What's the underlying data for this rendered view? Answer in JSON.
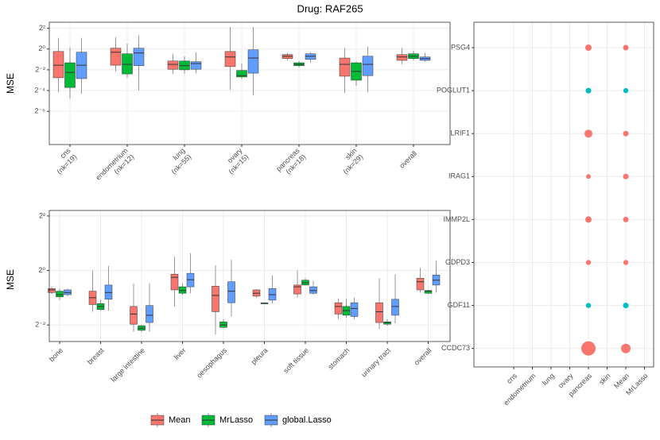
{
  "title": "Drug: RAF265",
  "chart_data": [
    {
      "type": "boxplot",
      "y_label": "MSE",
      "log_base": 2,
      "categories": [
        "cns",
        "endometrium",
        "lung",
        "ovary",
        "pancreas",
        "skin",
        "overall"
      ],
      "category_notes": [
        "(nk=19)",
        "(nk=12)",
        "(nk=55)",
        "(nk=15)",
        "(nk=18)",
        "(nk=29)",
        null
      ],
      "ylim": [
        0.0017,
        6
      ],
      "yticks": [
        {
          "value": 4,
          "label": "2²"
        },
        {
          "value": 1,
          "label": "2⁰"
        },
        {
          "value": 0.25,
          "label": "2⁻²"
        },
        {
          "value": 0.0625,
          "label": "2⁻⁴"
        },
        {
          "value": 0.015625,
          "label": "2⁻⁶"
        }
      ],
      "grid": true,
      "series": [
        {
          "name": "Mean",
          "color": "#F8766D",
          "values": [
            {
              "min": 0.056,
              "q1": 0.147,
              "median": 0.34,
              "q3": 0.85,
              "max": 2.11
            },
            {
              "min": 0.225,
              "q1": 0.34,
              "median": 0.81,
              "q3": 1.06,
              "max": 2.2
            },
            {
              "min": 0.19,
              "q1": 0.26,
              "median": 0.36,
              "q3": 0.45,
              "max": 0.73
            },
            {
              "min": 0.066,
              "q1": 0.31,
              "median": 0.59,
              "q3": 0.85,
              "max": 4.4
            },
            {
              "min": 0.47,
              "q1": 0.53,
              "median": 0.62,
              "q3": 0.69,
              "max": 0.77
            },
            {
              "min": 0.053,
              "q1": 0.163,
              "median": 0.36,
              "q3": 0.55,
              "max": 1.06
            },
            {
              "min": 0.36,
              "q1": 0.47,
              "median": 0.59,
              "q3": 0.69,
              "max": 1.06
            }
          ]
        },
        {
          "name": "MrLasso",
          "color": "#00BA38",
          "values": [
            {
              "min": 0.037,
              "q1": 0.077,
              "median": 0.21,
              "q3": 0.4,
              "max": 1.11
            },
            {
              "min": 0.147,
              "q1": 0.19,
              "median": 0.36,
              "q3": 0.73,
              "max": 1.45
            },
            {
              "min": 0.19,
              "q1": 0.25,
              "median": 0.33,
              "q3": 0.45,
              "max": 0.62
            },
            {
              "min": 0.139,
              "q1": 0.155,
              "median": 0.17,
              "q3": 0.24,
              "max": 0.38
            },
            {
              "min": 0.29,
              "q1": 0.33,
              "median": 0.36,
              "q3": 0.4,
              "max": 0.45
            },
            {
              "min": 0.086,
              "q1": 0.125,
              "median": 0.225,
              "q3": 0.4,
              "max": 0.43
            },
            {
              "min": 0.47,
              "q1": 0.53,
              "median": 0.62,
              "q3": 0.73,
              "max": 0.9
            }
          ]
        },
        {
          "name": "global.Lasso",
          "color": "#619CFF",
          "values": [
            {
              "min": 0.05,
              "q1": 0.139,
              "median": 0.34,
              "q3": 0.81,
              "max": 2.11
            },
            {
              "min": 0.0625,
              "q1": 0.33,
              "median": 0.77,
              "q3": 1.06,
              "max": 2.5
            },
            {
              "min": 0.2,
              "q1": 0.26,
              "median": 0.38,
              "q3": 0.43,
              "max": 0.81
            },
            {
              "min": 0.045,
              "q1": 0.2,
              "median": 0.55,
              "q3": 0.95,
              "max": 4.4
            },
            {
              "min": 0.4,
              "q1": 0.5,
              "median": 0.62,
              "q3": 0.73,
              "max": 0.81
            },
            {
              "min": 0.056,
              "q1": 0.17,
              "median": 0.36,
              "q3": 0.62,
              "max": 1.17
            },
            {
              "min": 0.43,
              "q1": 0.47,
              "median": 0.53,
              "q3": 0.59,
              "max": 0.77
            }
          ]
        }
      ]
    },
    {
      "type": "boxplot",
      "y_label": "MSE",
      "log_base": 2,
      "categories": [
        "bone",
        "breast",
        "large intestine",
        "liver",
        "oesophagus",
        "pleura",
        "soft tissue",
        "stomach",
        "urinary tract",
        "overall"
      ],
      "ylim": [
        0.164,
        4.6
      ],
      "yticks": [
        {
          "value": 4,
          "label": "2²"
        },
        {
          "value": 1,
          "label": "2⁰"
        },
        {
          "value": 0.25,
          "label": "2⁻²"
        }
      ],
      "grid": true,
      "series": [
        {
          "color": "#F8766D",
          "values": [
            {
              "min": 0.55,
              "q1": 0.57,
              "median": 0.61,
              "q3": 0.63,
              "max": 0.66
            },
            {
              "min": 0.35,
              "q1": 0.42,
              "median": 0.5,
              "q3": 0.59,
              "max": 1.0
            },
            {
              "min": 0.21,
              "q1": 0.255,
              "median": 0.33,
              "q3": 0.4,
              "max": 0.72
            },
            {
              "min": 0.4,
              "q1": 0.61,
              "median": 0.84,
              "q3": 0.91,
              "max": 1.42
            },
            {
              "min": 0.196,
              "q1": 0.35,
              "median": 0.53,
              "q3": 0.67,
              "max": 1.14
            },
            {
              "min": 0.5,
              "q1": 0.52,
              "median": 0.56,
              "q3": 0.61,
              "max": 0.62
            },
            {
              "min": 0.5,
              "q1": 0.55,
              "median": 0.66,
              "q3": 0.69,
              "max": 1.0
            },
            {
              "min": 0.29,
              "q1": 0.33,
              "median": 0.4,
              "q3": 0.44,
              "max": 0.49
            },
            {
              "min": 0.226,
              "q1": 0.266,
              "median": 0.35,
              "q3": 0.44,
              "max": 0.82
            },
            {
              "min": 0.57,
              "q1": 0.61,
              "median": 0.75,
              "q3": 0.82,
              "max": 1.07
            }
          ]
        },
        {
          "color": "#00BA38",
          "values": [
            {
              "min": 0.47,
              "q1": 0.51,
              "median": 0.54,
              "q3": 0.59,
              "max": 0.63
            },
            {
              "min": 0.36,
              "q1": 0.37,
              "median": 0.4,
              "q3": 0.43,
              "max": 0.47
            },
            {
              "min": 0.21,
              "q1": 0.218,
              "median": 0.23,
              "q3": 0.245,
              "max": 0.25
            },
            {
              "min": 0.54,
              "q1": 0.56,
              "median": 0.6,
              "q3": 0.66,
              "max": 0.72
            },
            {
              "min": 0.23,
              "q1": 0.235,
              "median": 0.25,
              "q3": 0.27,
              "max": 0.29
            },
            {
              "min": 0.43,
              "q1": 0.43,
              "median": 0.43,
              "q3": 0.44,
              "max": 0.44
            },
            {
              "min": 0.68,
              "q1": 0.69,
              "median": 0.73,
              "q3": 0.78,
              "max": 0.82
            },
            {
              "min": 0.3,
              "q1": 0.32,
              "median": 0.36,
              "q3": 0.4,
              "max": 0.48
            },
            {
              "min": 0.245,
              "q1": 0.255,
              "median": 0.266,
              "q3": 0.27,
              "max": 0.29
            },
            {
              "min": 0.55,
              "q1": 0.56,
              "median": 0.59,
              "q3": 0.6,
              "max": 0.61
            }
          ]
        },
        {
          "color": "#619CFF",
          "values": [
            {
              "min": 0.52,
              "q1": 0.54,
              "median": 0.57,
              "q3": 0.61,
              "max": 0.63
            },
            {
              "min": 0.36,
              "q1": 0.48,
              "median": 0.57,
              "q3": 0.69,
              "max": 1.12
            },
            {
              "min": 0.21,
              "q1": 0.266,
              "median": 0.32,
              "q3": 0.41,
              "max": 0.72
            },
            {
              "min": 0.56,
              "q1": 0.66,
              "median": 0.79,
              "q3": 0.93,
              "max": 1.55
            },
            {
              "min": 0.31,
              "q1": 0.44,
              "median": 0.59,
              "q3": 0.75,
              "max": 1.31
            },
            {
              "min": 0.43,
              "q1": 0.47,
              "median": 0.54,
              "q3": 0.63,
              "max": 0.88
            },
            {
              "min": 0.54,
              "q1": 0.56,
              "median": 0.6,
              "q3": 0.66,
              "max": 0.77
            },
            {
              "min": 0.29,
              "q1": 0.31,
              "median": 0.38,
              "q3": 0.44,
              "max": 0.5
            },
            {
              "min": 0.26,
              "q1": 0.32,
              "median": 0.4,
              "q3": 0.48,
              "max": 0.91
            },
            {
              "min": 0.57,
              "q1": 0.69,
              "median": 0.78,
              "q3": 0.89,
              "max": 1.28
            }
          ]
        }
      ]
    },
    {
      "type": "dot",
      "x": [
        "cns",
        "endometrium",
        "lung",
        "ovary",
        "pancreas",
        "skin",
        "Mean",
        "MrLasso"
      ],
      "y": [
        "PSG4",
        "POGLUT1",
        "LRIF1",
        "IRAG1",
        "IMMP2L",
        "GDPD3",
        "GDF11",
        "CCDC73"
      ],
      "grid": true,
      "points": [
        {
          "x": "pancreas",
          "y": "PSG4",
          "size": 4,
          "color": "#F8766D"
        },
        {
          "x": "pancreas",
          "y": "POGLUT1",
          "size": 3.5,
          "color": "#00BFC4"
        },
        {
          "x": "pancreas",
          "y": "LRIF1",
          "size": 5,
          "color": "#F8766D"
        },
        {
          "x": "pancreas",
          "y": "IRAG1",
          "size": 3,
          "color": "#F8766D"
        },
        {
          "x": "pancreas",
          "y": "IMMP2L",
          "size": 4,
          "color": "#F8766D"
        },
        {
          "x": "pancreas",
          "y": "GDPD3",
          "size": 3.2,
          "color": "#F8766D"
        },
        {
          "x": "pancreas",
          "y": "GDF11",
          "size": 3.2,
          "color": "#00BFC4"
        },
        {
          "x": "pancreas",
          "y": "CCDC73",
          "size": 9,
          "color": "#F8766D"
        },
        {
          "x": "Mean",
          "y": "PSG4",
          "size": 3.5,
          "color": "#F8766D"
        },
        {
          "x": "Mean",
          "y": "POGLUT1",
          "size": 3.2,
          "color": "#00BFC4"
        },
        {
          "x": "Mean",
          "y": "LRIF1",
          "size": 3.5,
          "color": "#F8766D"
        },
        {
          "x": "Mean",
          "y": "IRAG1",
          "size": 3.5,
          "color": "#F8766D"
        },
        {
          "x": "Mean",
          "y": "IMMP2L",
          "size": 3.5,
          "color": "#F8766D"
        },
        {
          "x": "Mean",
          "y": "GDPD3",
          "size": 3.2,
          "color": "#F8766D"
        },
        {
          "x": "Mean",
          "y": "GDF11",
          "size": 3.5,
          "color": "#00BFC4"
        },
        {
          "x": "Mean",
          "y": "CCDC73",
          "size": 6,
          "color": "#F8766D"
        }
      ]
    }
  ]
}
